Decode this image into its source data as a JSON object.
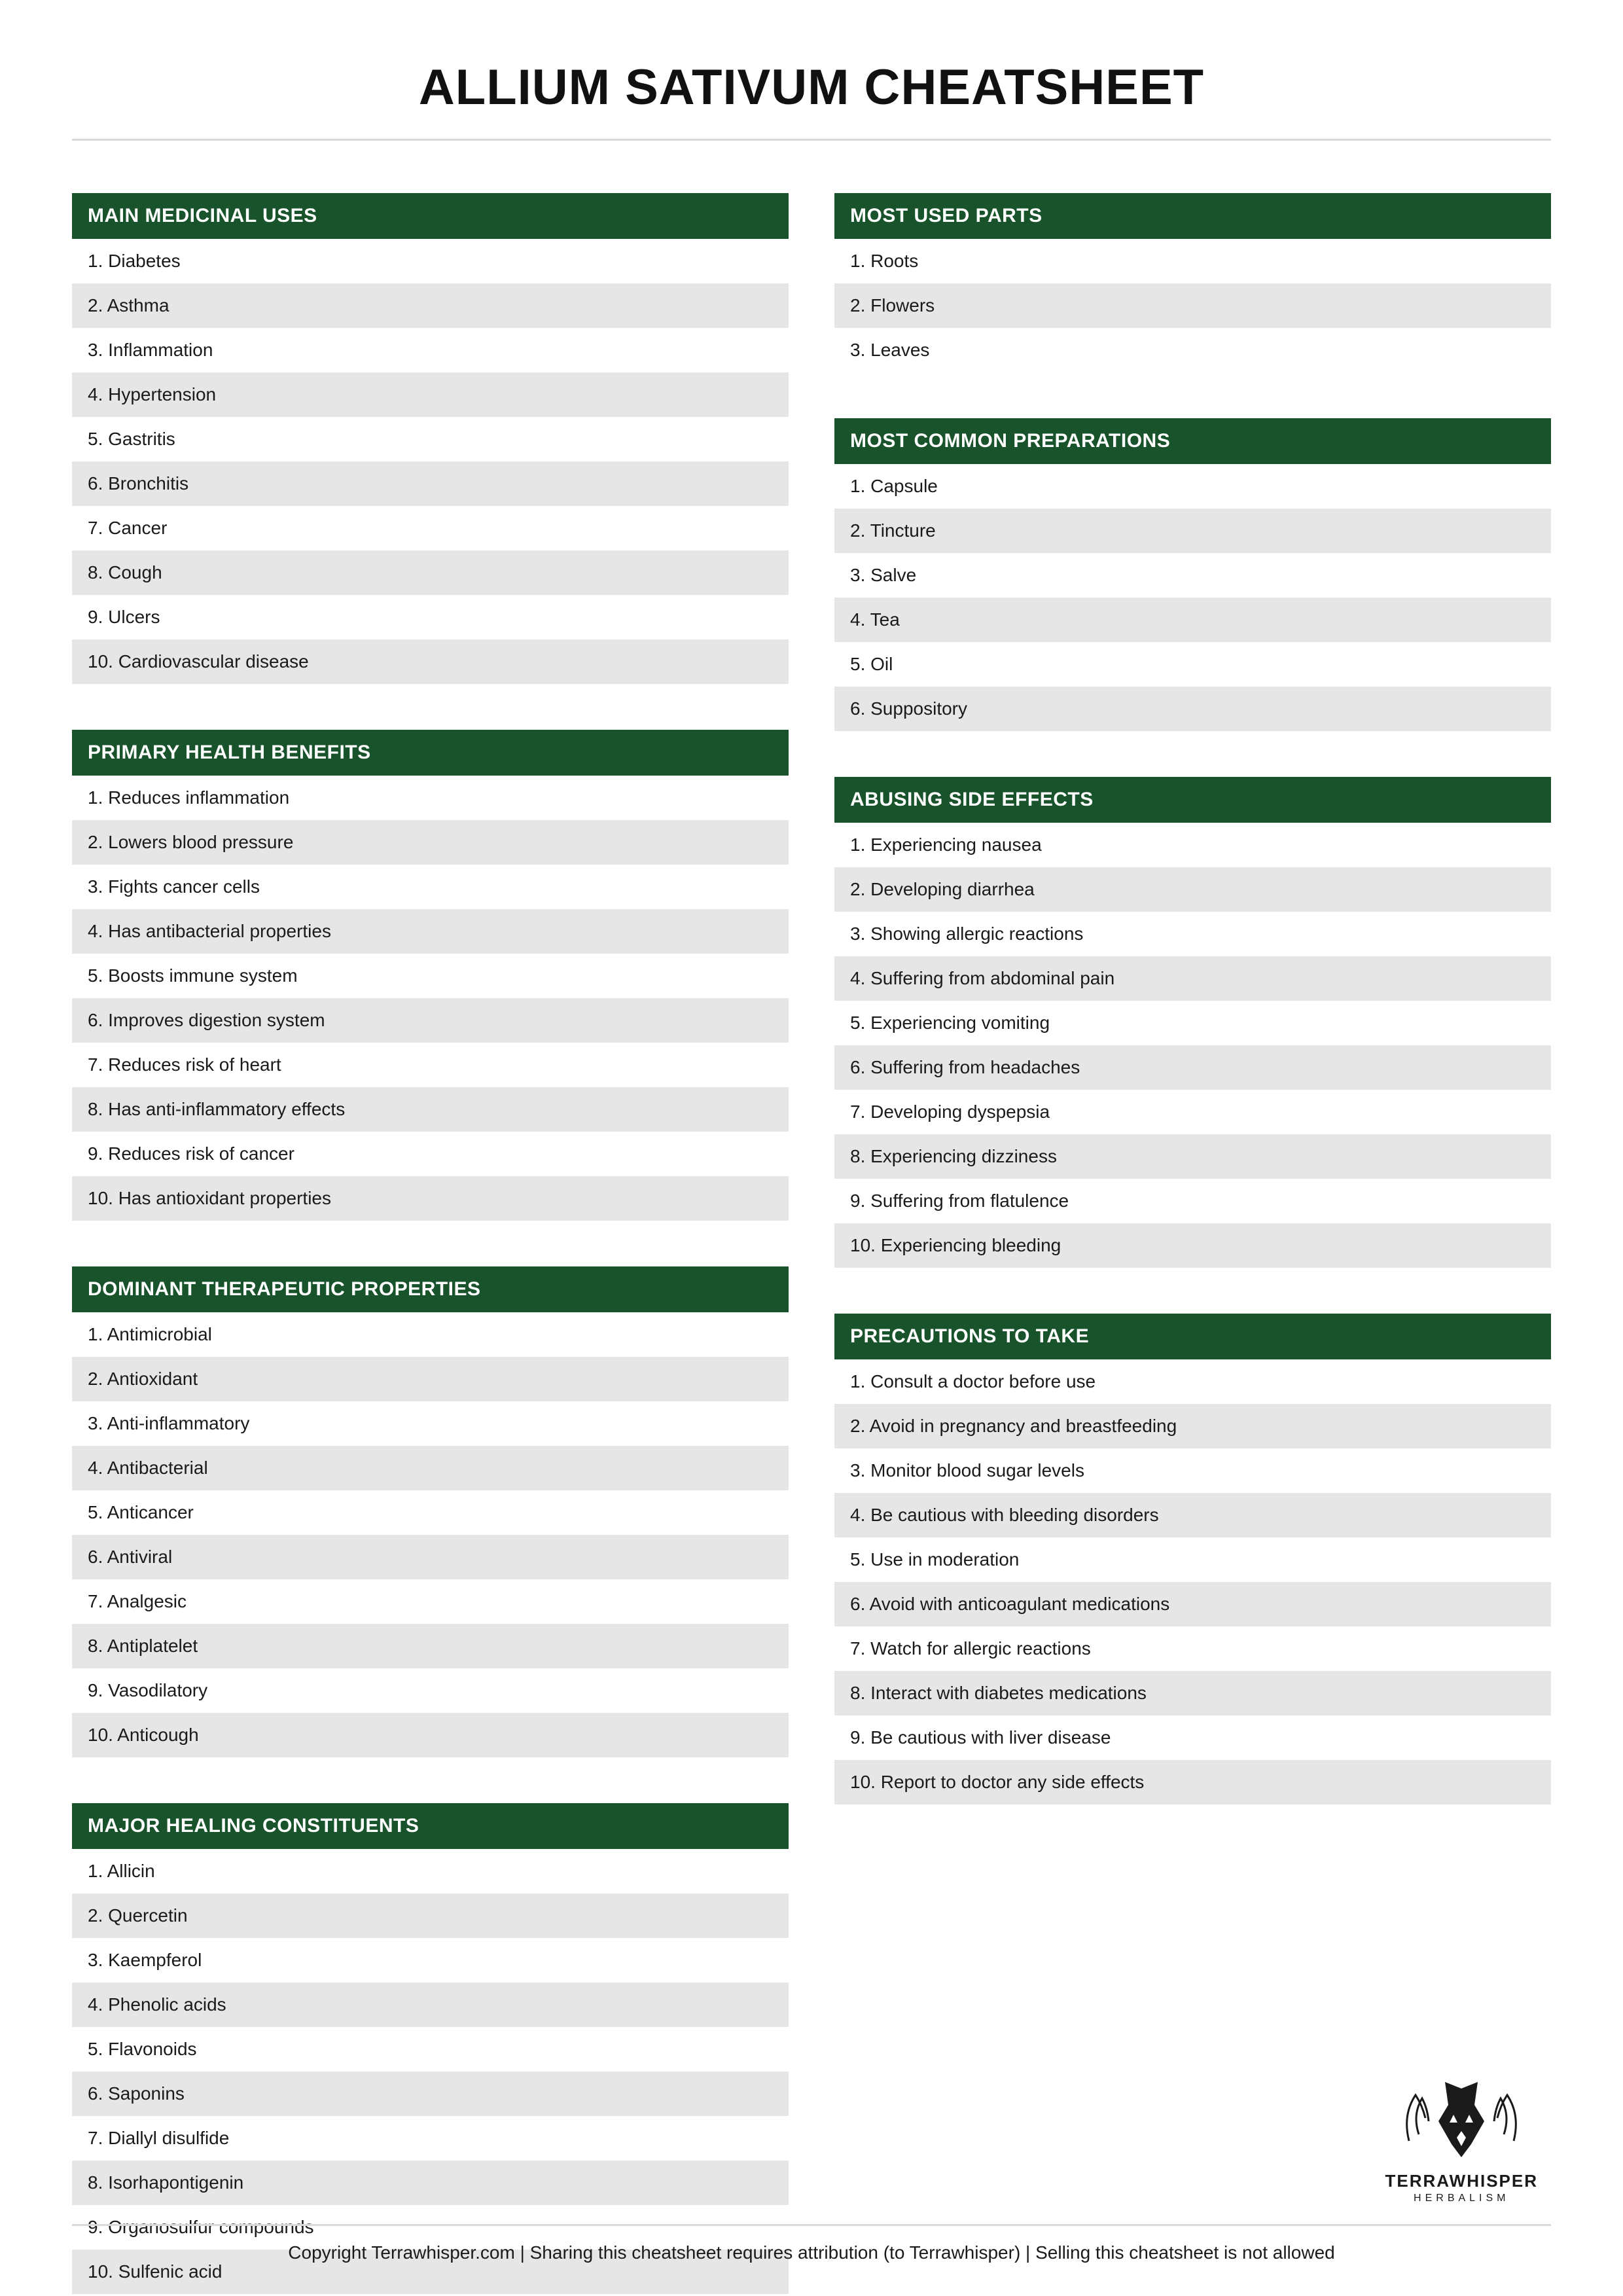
{
  "title": "ALLIUM SATIVUM CHEATSHEET",
  "colors": {
    "header_bg": "#19532c",
    "header_text": "#ffffff",
    "row_even_bg": "#e6e6e6",
    "row_odd_bg": "#ffffff",
    "text": "#1a1a1a",
    "divider": "#d9d9d9"
  },
  "typography": {
    "title_fontsize": 76,
    "header_fontsize": 30,
    "row_fontsize": 28,
    "footer_fontsize": 28
  },
  "left": [
    {
      "header": "MAIN MEDICINAL USES",
      "items": [
        "1. Diabetes",
        "2. Asthma",
        "3. Inflammation",
        "4. Hypertension",
        "5. Gastritis",
        "6. Bronchitis",
        "7. Cancer",
        "8. Cough",
        "9. Ulcers",
        "10. Cardiovascular disease"
      ]
    },
    {
      "header": "PRIMARY HEALTH BENEFITS",
      "items": [
        "1. Reduces inflammation",
        "2. Lowers blood pressure",
        "3. Fights cancer cells",
        "4. Has antibacterial properties",
        "5. Boosts immune system",
        "6. Improves digestion system",
        "7. Reduces risk of heart",
        "8. Has anti-inflammatory effects",
        "9. Reduces risk of cancer",
        "10. Has antioxidant properties"
      ]
    },
    {
      "header": "DOMINANT THERAPEUTIC PROPERTIES",
      "items": [
        "1. Antimicrobial",
        "2. Antioxidant",
        "3. Anti-inflammatory",
        "4. Antibacterial",
        "5. Anticancer",
        "6. Antiviral",
        "7. Analgesic",
        "8. Antiplatelet",
        "9. Vasodilatory",
        "10. Anticough"
      ]
    },
    {
      "header": "MAJOR HEALING CONSTITUENTS",
      "items": [
        "1. Allicin",
        "2. Quercetin",
        "3. Kaempferol",
        "4. Phenolic acids",
        "5. Flavonoids",
        "6. Saponins",
        "7. Diallyl disulfide",
        "8. Isorhapontigenin",
        "9. Organosulfur compounds",
        "10. Sulfenic acid"
      ]
    }
  ],
  "right": [
    {
      "header": "MOST USED PARTS",
      "items": [
        "1. Roots",
        "2. Flowers",
        "3. Leaves"
      ]
    },
    {
      "header": "MOST COMMON PREPARATIONS",
      "items": [
        "1. Capsule",
        "2. Tincture",
        "3. Salve",
        "4. Tea",
        "5. Oil",
        "6. Suppository"
      ]
    },
    {
      "header": "ABUSING SIDE EFFECTS",
      "items": [
        "1. Experiencing nausea",
        "2. Developing diarrhea",
        "3. Showing allergic reactions",
        "4. Suffering from abdominal pain",
        "5. Experiencing vomiting",
        "6. Suffering from headaches",
        "7. Developing dyspepsia",
        "8. Experiencing dizziness",
        "9. Suffering from flatulence",
        "10. Experiencing bleeding"
      ]
    },
    {
      "header": "PRECAUTIONS TO TAKE",
      "items": [
        "1. Consult a doctor before use",
        "2. Avoid in pregnancy and breastfeeding",
        "3. Monitor blood sugar levels",
        "4. Be cautious with bleeding disorders",
        "5. Use in moderation",
        "6. Avoid with anticoagulant medications",
        "7. Watch for allergic reactions",
        "8. Interact with diabetes medications",
        "9. Be cautious with liver disease",
        "10. Report to doctor any side effects"
      ]
    }
  ],
  "logo": {
    "name": "TERRAWHISPER",
    "sub": "HERBALISM"
  },
  "footer": "Copyright Terrawhisper.com | Sharing this cheatsheet requires attribution (to Terrawhisper) | Selling this cheatsheet is not allowed"
}
